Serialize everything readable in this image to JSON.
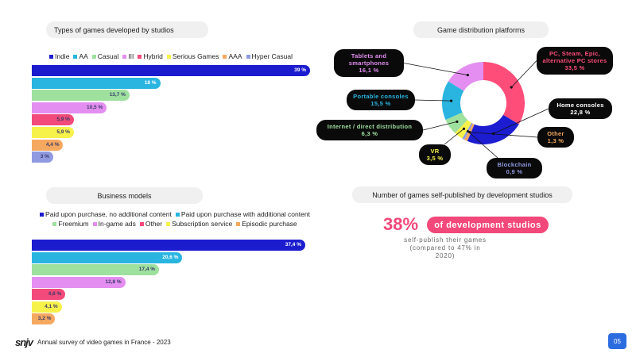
{
  "chart_data": [
    {
      "type": "bar",
      "orientation": "horizontal",
      "title": "Types of games developed by studios",
      "categories": [
        "Indie",
        "AA",
        "Casual",
        "III",
        "Hybrid",
        "Serious Games",
        "AAA",
        "Hyper Casual"
      ],
      "values": [
        39,
        18,
        13.7,
        10.5,
        5.9,
        5.9,
        4.4,
        3
      ],
      "value_labels": [
        "39 %",
        "18 %",
        "13,7 %",
        "10,5 %",
        "5,9 %",
        "5,9 %",
        "4,4 %",
        "3 %"
      ],
      "colors": [
        "#1c1ccf",
        "#29b5e0",
        "#9ee09e",
        "#e38ef0",
        "#f24a7a",
        "#f7f24a",
        "#f5a860",
        "#8f9ae0"
      ]
    },
    {
      "type": "pie",
      "donut": true,
      "title": "Game distribution platforms",
      "categories": [
        "PC, Steam, Epic, alternative PC stores",
        "Home consoles",
        "Other",
        "Blockchain",
        "VR",
        "Internet / direct distribution",
        "Portable consoles",
        "Tablets and smartphones"
      ],
      "values": [
        33.5,
        22.8,
        1.3,
        0.9,
        3.5,
        6.3,
        15.5,
        16.1
      ],
      "value_labels": [
        "33,5 %",
        "22,8 %",
        "1,3 %",
        "0,9 %",
        "3,5 %",
        "6,3 %",
        "15,5 %",
        "16,1 %"
      ],
      "colors": [
        "#ff4d7a",
        "#1c1cd0",
        "#f5a860",
        "#8f9ae0",
        "#f7f24a",
        "#9ee09e",
        "#29b5e0",
        "#e38ef0"
      ]
    },
    {
      "type": "bar",
      "orientation": "horizontal",
      "title": "Business models",
      "categories": [
        "Paid upon purchase, no additional content",
        "Paid upon purchase with additional content",
        "Freemium",
        "In-game ads",
        "Other",
        "Subscription service",
        "Episodic purchase"
      ],
      "values": [
        37.4,
        20.6,
        17.4,
        12.8,
        4.6,
        4.1,
        3.2
      ],
      "value_labels": [
        "37,4 %",
        "20,6 %",
        "17,4 %",
        "12,8 %",
        "4,6 %",
        "4,1 %",
        "3,2 %"
      ],
      "colors": [
        "#1c1ccf",
        "#29b5e0",
        "#9ee09e",
        "#e38ef0",
        "#f24a7a",
        "#f7f24a",
        "#f5a860"
      ]
    }
  ],
  "highlight": {
    "title": "Number of games self-published by development studios",
    "value": "38%",
    "label": "of development studios",
    "text": "self-publish their games (compared to 47% in 2020)"
  },
  "footer": {
    "logo": "snjv",
    "text": "Annual survey of video games in France - 2023",
    "page": "05"
  }
}
